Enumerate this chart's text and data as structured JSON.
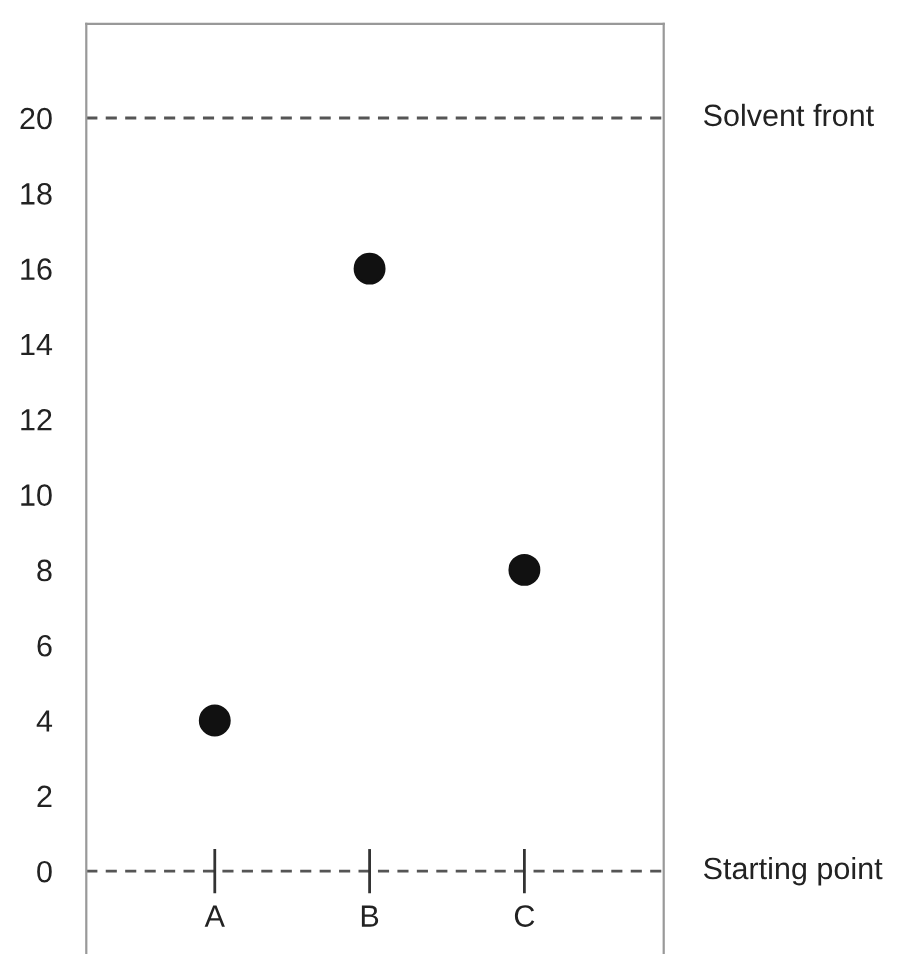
{
  "chart_data": {
    "type": "scatter",
    "categories": [
      "A",
      "B",
      "C"
    ],
    "series": [
      {
        "color": "#111111",
        "values": [
          4,
          16,
          8
        ]
      }
    ],
    "marker": "circle",
    "ylim": [
      -2.2,
      22.5
    ],
    "yticks": [
      0,
      2,
      4,
      6,
      8,
      10,
      12,
      14,
      16,
      18,
      20
    ],
    "ref_lines": [
      {
        "axis": "y",
        "value": 20,
        "label": "Solvent front",
        "color": "#555555",
        "line_style": "dashed"
      },
      {
        "axis": "y",
        "value": 0,
        "label": "Starting point",
        "color": "#555555",
        "line_style": "dashed"
      }
    ],
    "grid": false,
    "legend": false
  }
}
